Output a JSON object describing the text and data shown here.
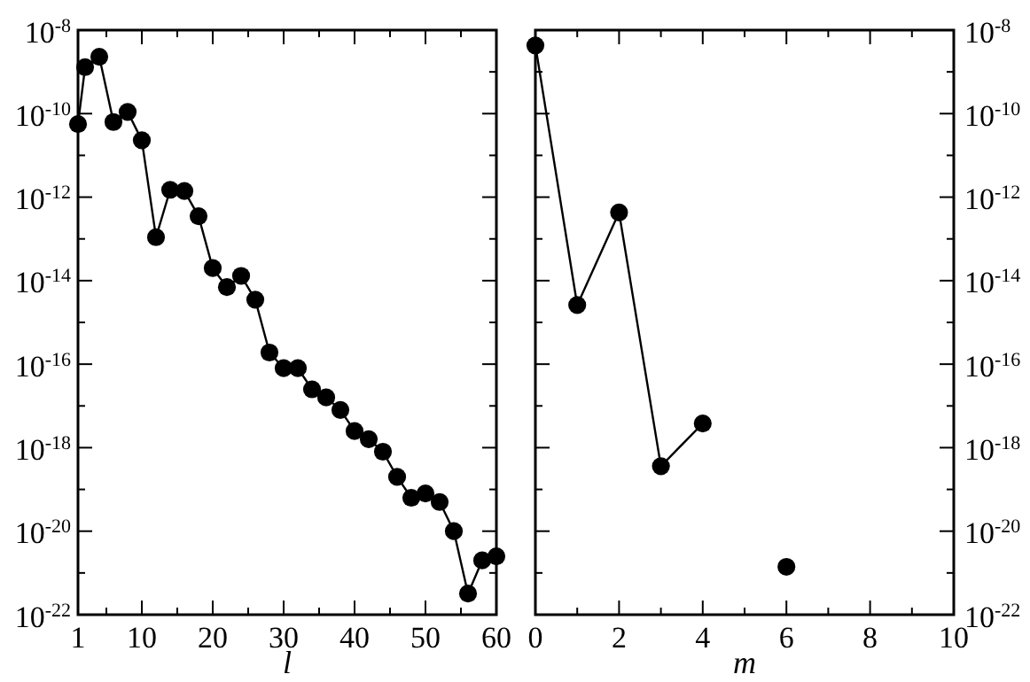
{
  "chart_data": [
    {
      "type": "line",
      "xlabel": "l",
      "marker": "circle",
      "log": "y",
      "xlim": [
        1,
        60
      ],
      "xticks": [
        1,
        {
          "value": 5,
          "label": null
        },
        10,
        {
          "value": 15,
          "label": null
        },
        20,
        {
          "value": 25,
          "label": null
        },
        30,
        {
          "value": 35,
          "label": null
        },
        40,
        {
          "value": 45,
          "label": null
        },
        50,
        {
          "value": 55,
          "label": null
        },
        60
      ],
      "ylim": [
        1e-22,
        1e-08
      ],
      "yticks": [
        {
          "value": 1e-22,
          "label": "10$^{-22}$"
        },
        {
          "value": 1e-21,
          "label": null
        },
        {
          "value": 1e-20,
          "label": "10$^{-20}$"
        },
        {
          "value": 1e-19,
          "label": null
        },
        {
          "value": 1e-18,
          "label": "10$^{-18}$"
        },
        {
          "value": 1e-17,
          "label": null
        },
        {
          "value": 1e-16,
          "label": "10$^{-16}$"
        },
        {
          "value": 1e-15,
          "label": null
        },
        {
          "value": 1e-14,
          "label": "10$^{-14}$"
        },
        {
          "value": 1e-13,
          "label": null
        },
        {
          "value": 1e-12,
          "label": "10$^{-12}$"
        },
        {
          "value": 1e-11,
          "label": null
        },
        {
          "value": 1e-10,
          "label": "10$^{-10}$"
        },
        {
          "value": 1e-09,
          "label": null
        },
        {
          "value": 1e-08,
          "label": "10$^{-8}$"
        }
      ],
      "series": [
        {
          "color": "#000000",
          "x": [
            1,
            2,
            4,
            6,
            8,
            10,
            12,
            14,
            16,
            18,
            20,
            22,
            24,
            26,
            28,
            30,
            32,
            34,
            36,
            38,
            40,
            42,
            44,
            46,
            48,
            50,
            52,
            54,
            56,
            58,
            60
          ],
          "values": [
            5.6e-11,
            1.3e-09,
            2.3e-09,
            6.3e-11,
            1.1e-10,
            2.3e-11,
            1.1e-13,
            1.5e-12,
            1.4e-12,
            3.5e-13,
            2e-14,
            7e-15,
            1.3e-14,
            3.5e-15,
            1.9e-16,
            8e-17,
            8e-17,
            2.5e-17,
            1.6e-17,
            8e-18,
            2.5e-18,
            1.6e-18,
            8e-19,
            2e-19,
            6.3e-20,
            8e-20,
            5e-20,
            1e-20,
            3.2e-22,
            2e-21,
            2.5e-21
          ]
        }
      ]
    },
    {
      "type": "line",
      "xlabel": "m",
      "marker": "circle",
      "log": "y2",
      "xlim": [
        0,
        10
      ],
      "xticks": [
        0,
        {
          "value": 1,
          "label": null
        },
        2,
        {
          "value": 3,
          "label": null
        },
        4,
        {
          "value": 5,
          "label": null
        },
        6,
        {
          "value": 7,
          "label": null
        },
        8,
        {
          "value": 9,
          "label": null
        },
        10
      ],
      "y2lim": [
        1e-22,
        1e-08
      ],
      "y2ticks": [
        {
          "value": 1e-22,
          "label": "10$^{-22}$"
        },
        {
          "value": 1e-21,
          "label": null
        },
        {
          "value": 1e-20,
          "label": "10$^{-20}$"
        },
        {
          "value": 1e-19,
          "label": null
        },
        {
          "value": 1e-18,
          "label": "10$^{-18}$"
        },
        {
          "value": 1e-17,
          "label": null
        },
        {
          "value": 1e-16,
          "label": "10$^{-16}$"
        },
        {
          "value": 1e-15,
          "label": null
        },
        {
          "value": 1e-14,
          "label": "10$^{-14}$"
        },
        {
          "value": 1e-13,
          "label": null
        },
        {
          "value": 1e-12,
          "label": "10$^{-12}$"
        },
        {
          "value": 1e-11,
          "label": null
        },
        {
          "value": 1e-10,
          "label": "10$^{-10}$"
        },
        {
          "value": 1e-09,
          "label": null
        },
        {
          "value": 1e-08,
          "label": "10$^{-8}$"
        }
      ],
      "series": [
        {
          "color": "#000000",
          "axis": "y2",
          "x": [
            0,
            1,
            2,
            3,
            4,
            5,
            6
          ],
          "values": [
            4.3e-09,
            2.6e-15,
            4.3e-13,
            3.6e-19,
            3.8e-18,
            null,
            1.4e-21
          ]
        }
      ]
    }
  ]
}
